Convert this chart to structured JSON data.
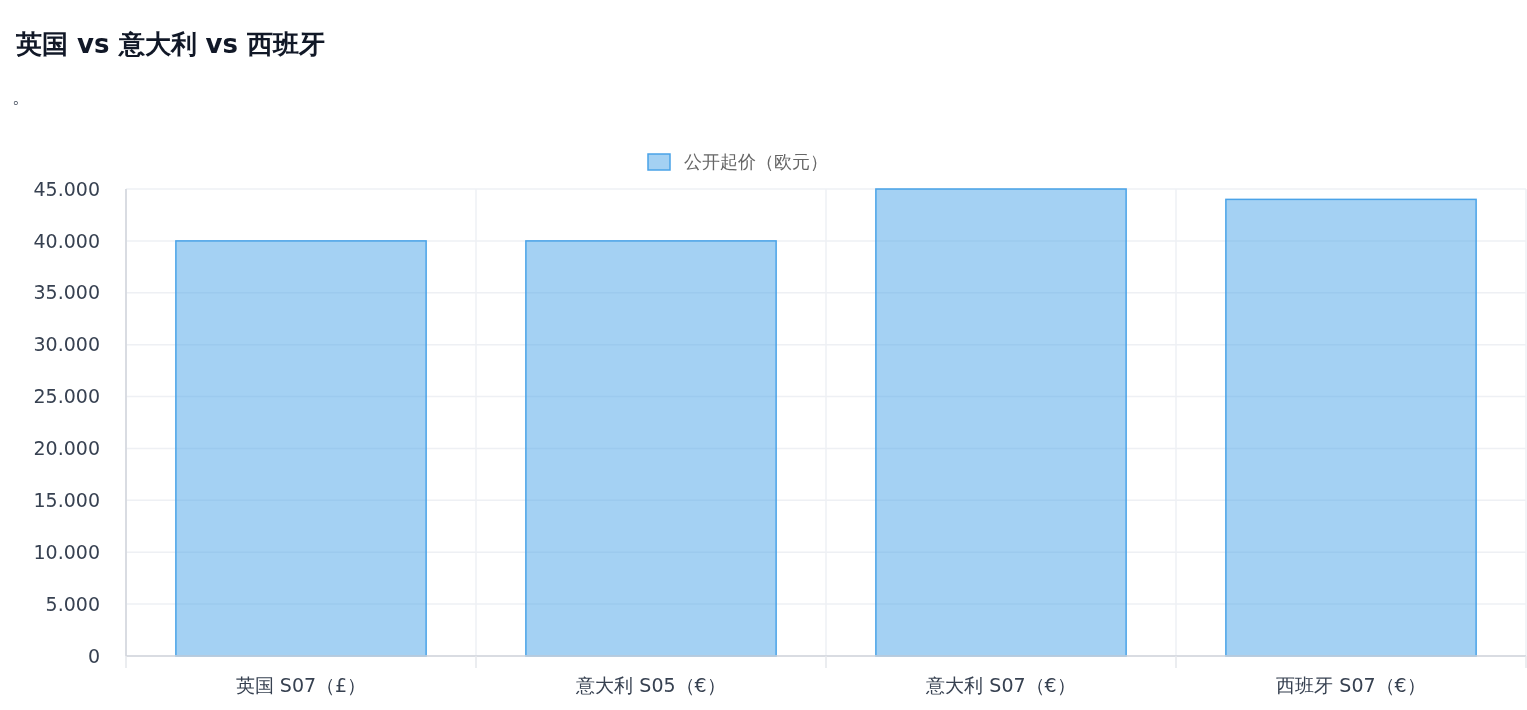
{
  "chart_data": {
    "type": "bar",
    "title": "英国 vs 意大利 vs 西班牙",
    "subtitle": "。",
    "categories": [
      "英国 S07（£）",
      "意大利 S05（€）",
      "意大利 S07（€）",
      "西班牙 S07（€）"
    ],
    "series": [
      {
        "name": "公开起价（欧元）",
        "color": "#4aa3e8",
        "values": [
          40000,
          40000,
          45000,
          44000
        ]
      }
    ],
    "ylim": [
      0,
      45000
    ],
    "yticks": [
      0,
      {
        "value": 5000,
        "label": "5.000"
      },
      {
        "value": 10000,
        "label": "10.000"
      },
      {
        "value": 15000,
        "label": "15.000"
      },
      {
        "value": 20000,
        "label": "20.000"
      },
      {
        "value": 25000,
        "label": "25.000"
      },
      {
        "value": 30000,
        "label": "30.000"
      },
      {
        "value": 35000,
        "label": "35.000"
      },
      {
        "value": 40000,
        "label": "40.000"
      },
      {
        "value": 45000,
        "label": "45.000"
      }
    ],
    "grid": true,
    "legend": "top"
  }
}
